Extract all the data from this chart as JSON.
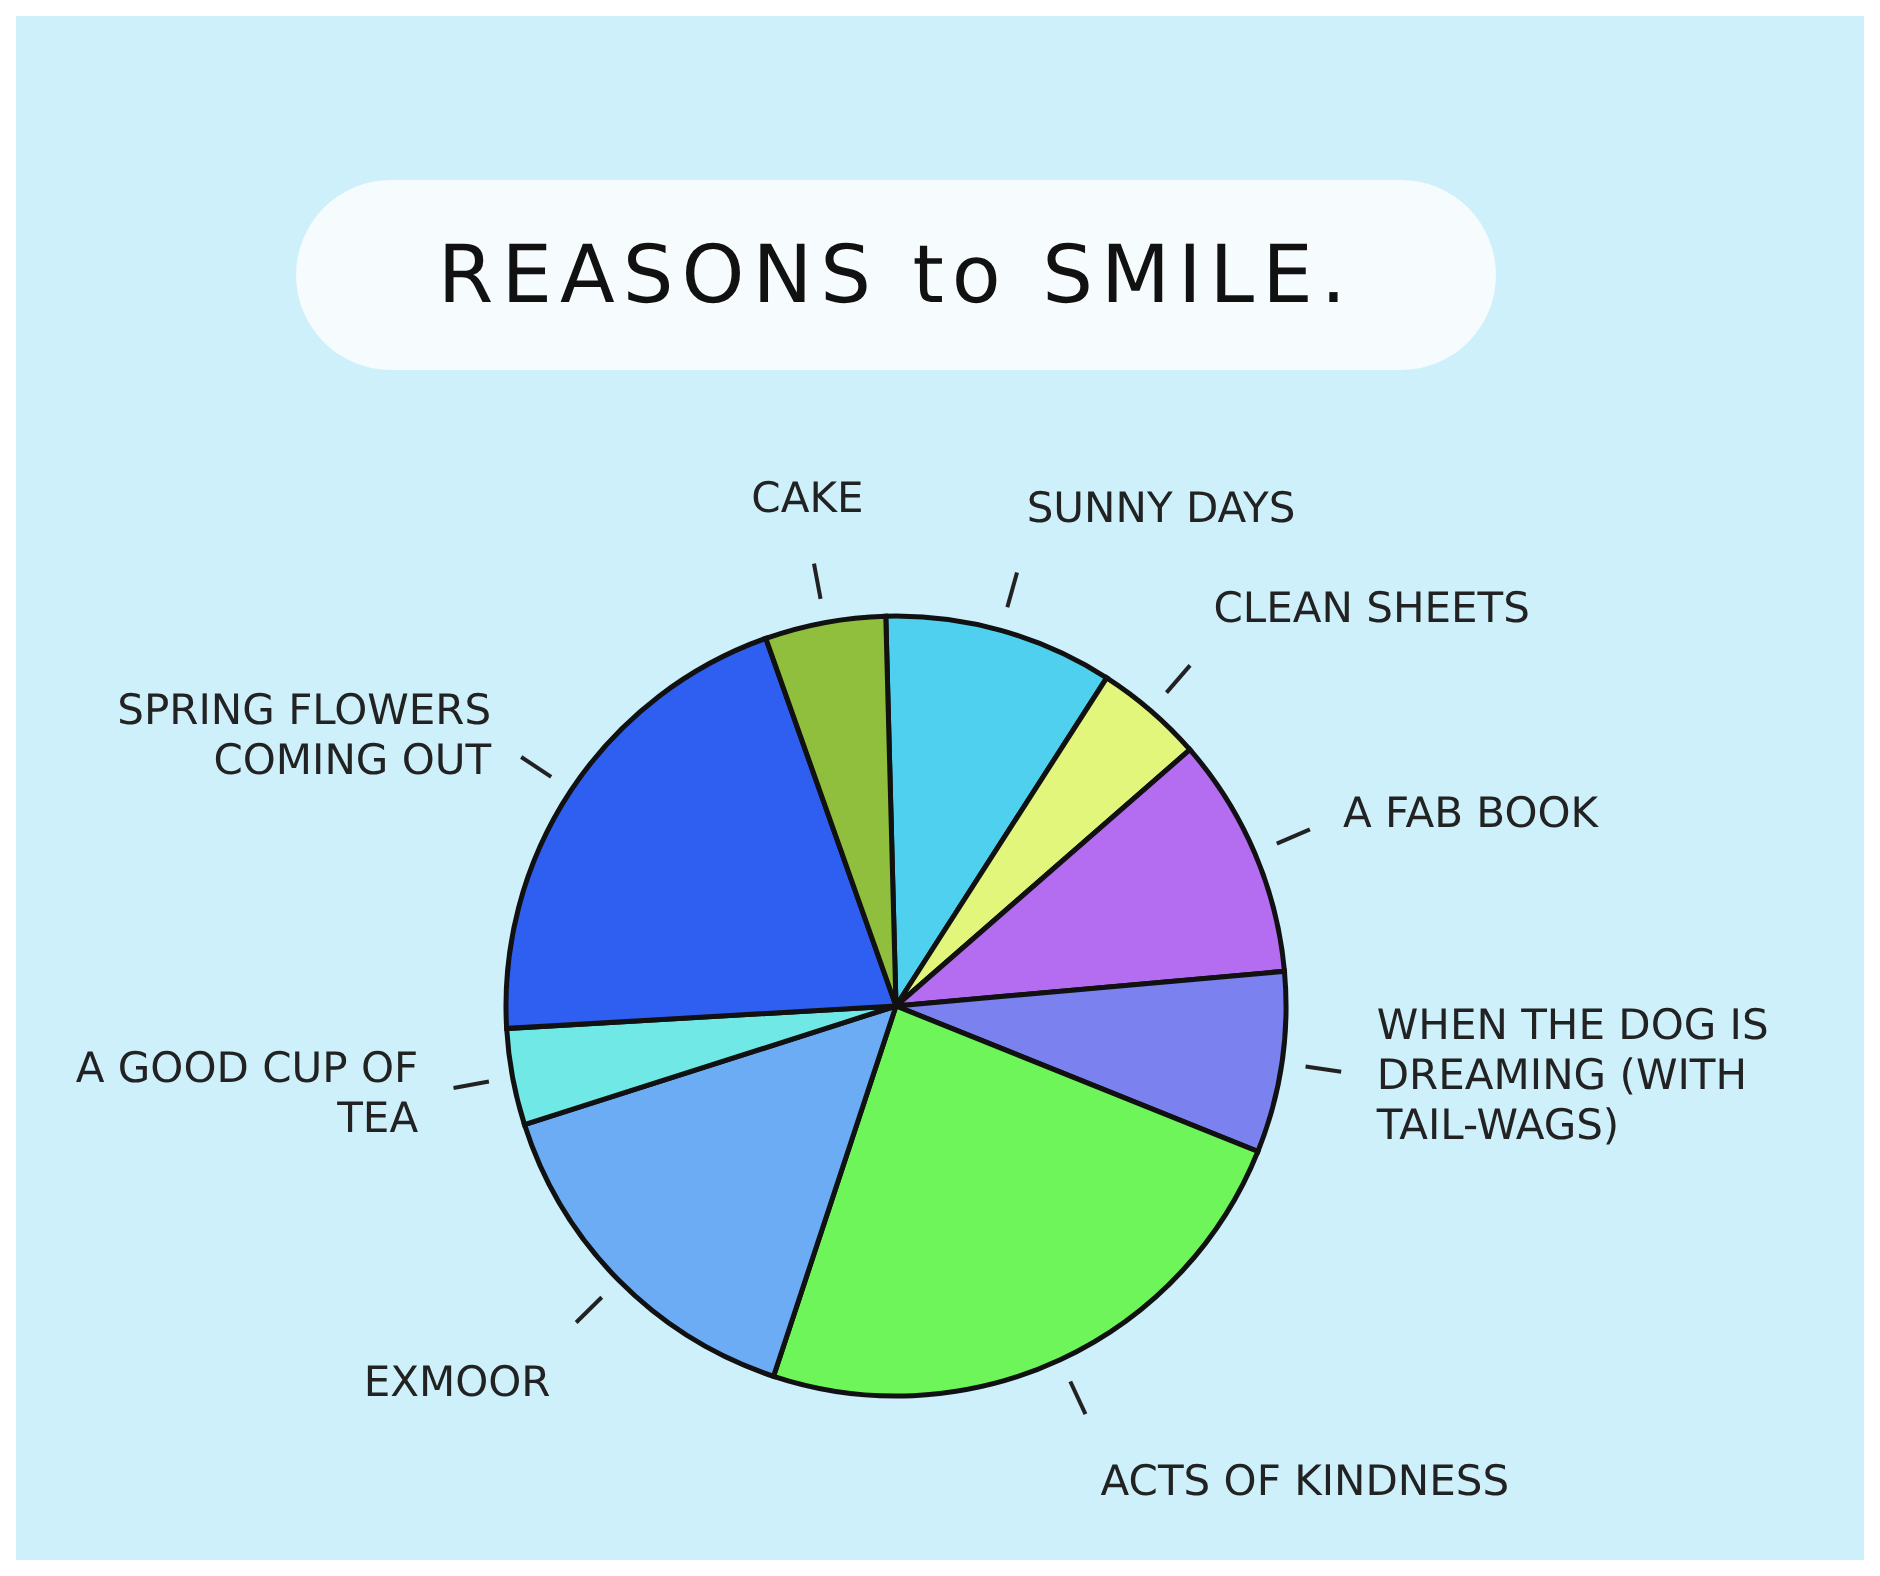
{
  "chart_data": {
    "type": "pie",
    "title": "REASONS to SMILE.",
    "categories": [
      "SUNNY DAYS",
      "CLEAN SHEETS",
      "A FAB BOOK",
      "WHEN THE DOG IS DREAMING (WITH TAIL-WAGS)",
      "ACTS OF KINDNESS",
      "EXMOOR",
      "A GOOD CUP OF TEA",
      "SPRING FLOWERS COMING OUT",
      "CAKE"
    ],
    "values": [
      9.5,
      4.5,
      10,
      7.5,
      24,
      15,
      4,
      20.5,
      5
    ],
    "colors": [
      "#4fd0ee",
      "#e2f67c",
      "#b46cf0",
      "#7b82f0",
      "#6ef55a",
      "#6cacf5",
      "#70e8e6",
      "#2f5ff0",
      "#8fbf3c"
    ],
    "legend": false
  }
}
